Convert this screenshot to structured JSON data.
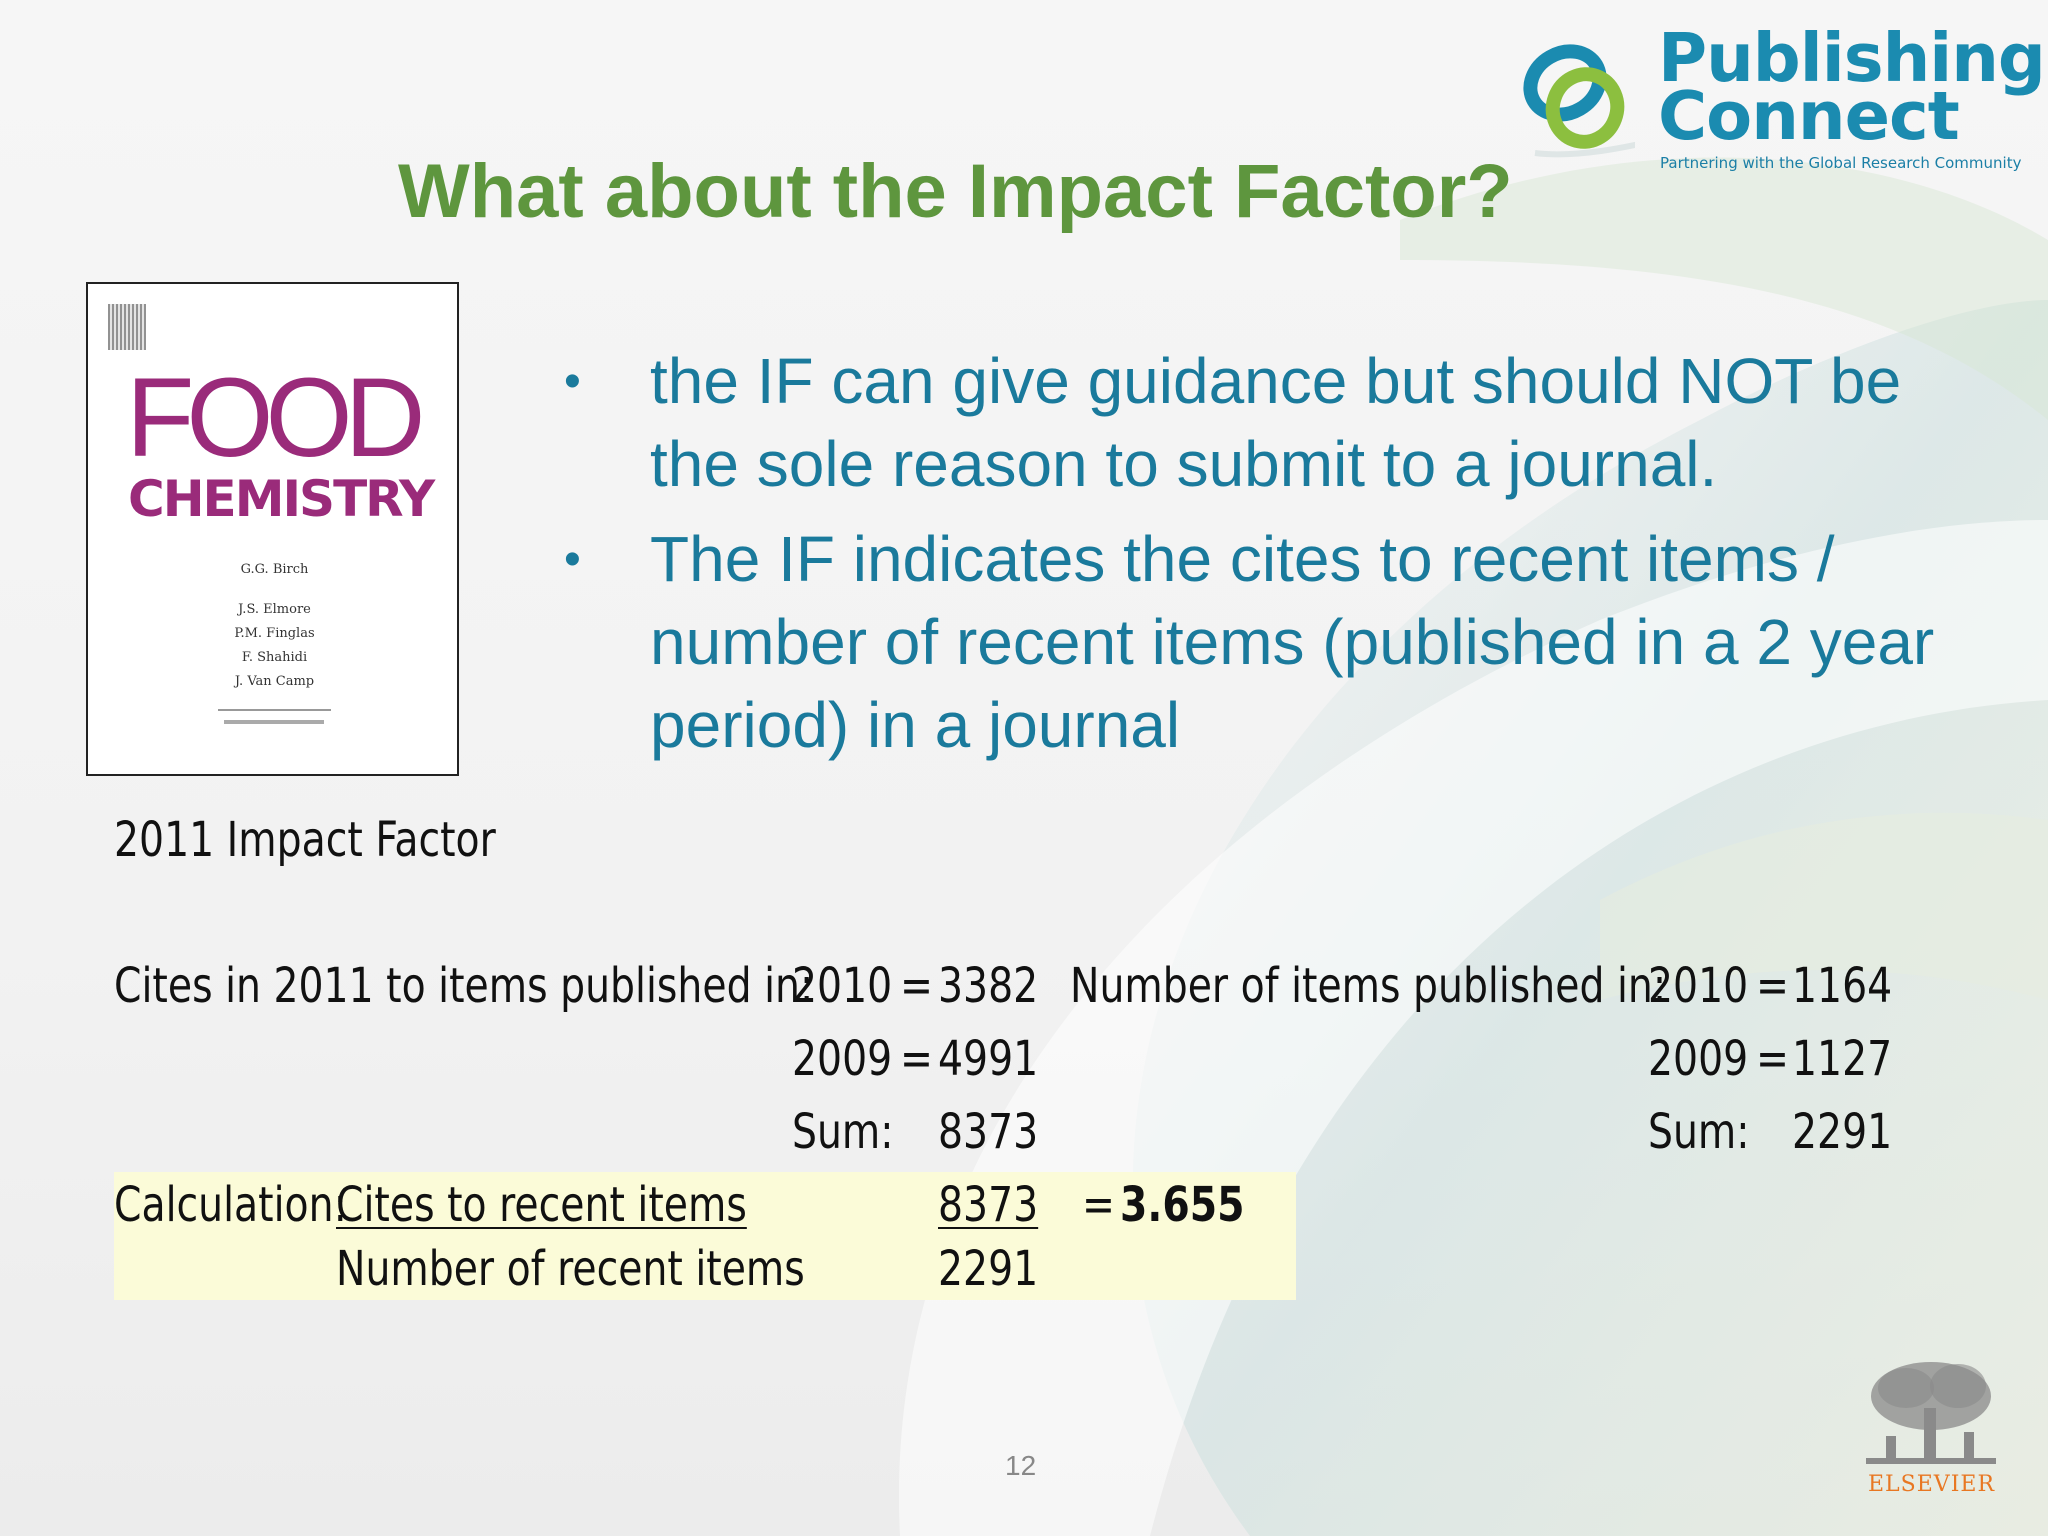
{
  "logo": {
    "line1": "Publishing",
    "line2": "Connect",
    "tagline": "Partnering with the Global Research Community",
    "color": "#1b8bb0"
  },
  "title": "What about the Impact Factor?",
  "title_color": "#5e963e",
  "cover": {
    "title_word1": "FOOD",
    "title_word2": "CHEMISTRY",
    "editor": "G.G. Birch",
    "editors": [
      "J.S. Elmore",
      "P.M. Finglas",
      "F. Shahidi",
      "J. Van Camp"
    ],
    "accent_color": "#9a2b7a"
  },
  "bullets": [
    "the IF can give guidance but should NOT be the sole reason to submit to a journal.",
    "The IF indicates the cites to recent items / number of recent items (published in a 2 year period) in a journal"
  ],
  "bullet_color": "#1a7a9c",
  "impact_factor": {
    "label": "2011 Impact Factor",
    "cites": {
      "label": "Cites in 2011 to items published in:",
      "rows": [
        {
          "year": "2010",
          "eq": "=",
          "value": "3382"
        },
        {
          "year": "2009",
          "eq": "=",
          "value": "4991"
        }
      ],
      "sum_label": "Sum:",
      "sum_value": "8373"
    },
    "items": {
      "label": "Number of items published in:",
      "rows": [
        {
          "year": "2010",
          "eq": "=",
          "value": "1164"
        },
        {
          "year": "2009",
          "eq": "=",
          "value": "1127"
        }
      ],
      "sum_label": "Sum:",
      "sum_value": "2291"
    },
    "calculation": {
      "label": "Calculation:",
      "numerator_label": "Cites to recent items",
      "denominator_label": "Number of recent items",
      "numerator": "8373",
      "denominator": "2291",
      "equals": "=",
      "result": "3.655"
    },
    "highlight_color": "#fbfbd8"
  },
  "page_number": "12",
  "publisher": "ELSEVIER"
}
